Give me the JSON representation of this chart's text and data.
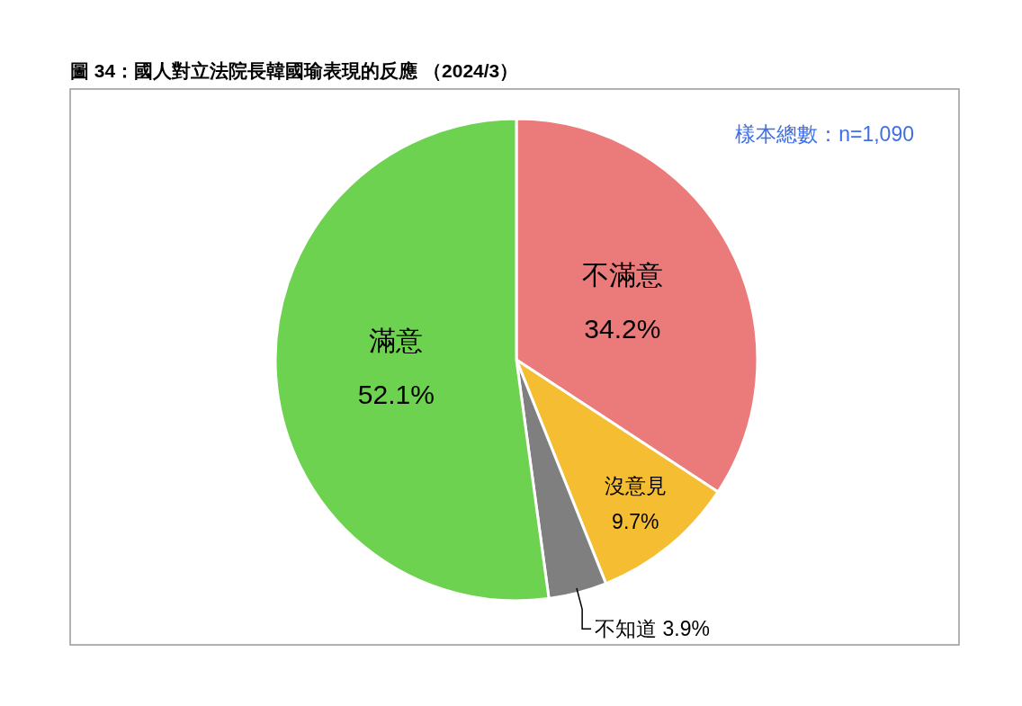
{
  "chart_data": {
    "type": "pie",
    "title": "圖 34：國人對立法院長韓國瑜表現的反應 （2024/3）",
    "categories": [
      "不滿意",
      "沒意見",
      "不知道",
      "滿意"
    ],
    "values": [
      34.2,
      9.7,
      3.9,
      52.1
    ],
    "value_labels": [
      "34.2%",
      "9.7%",
      "3.9%",
      "52.1%"
    ],
    "colors": [
      "#eb7a7a",
      "#f5be32",
      "#7f7f7f",
      "#6dd250"
    ],
    "annotations": [
      "樣本總數：n=1,090"
    ]
  }
}
